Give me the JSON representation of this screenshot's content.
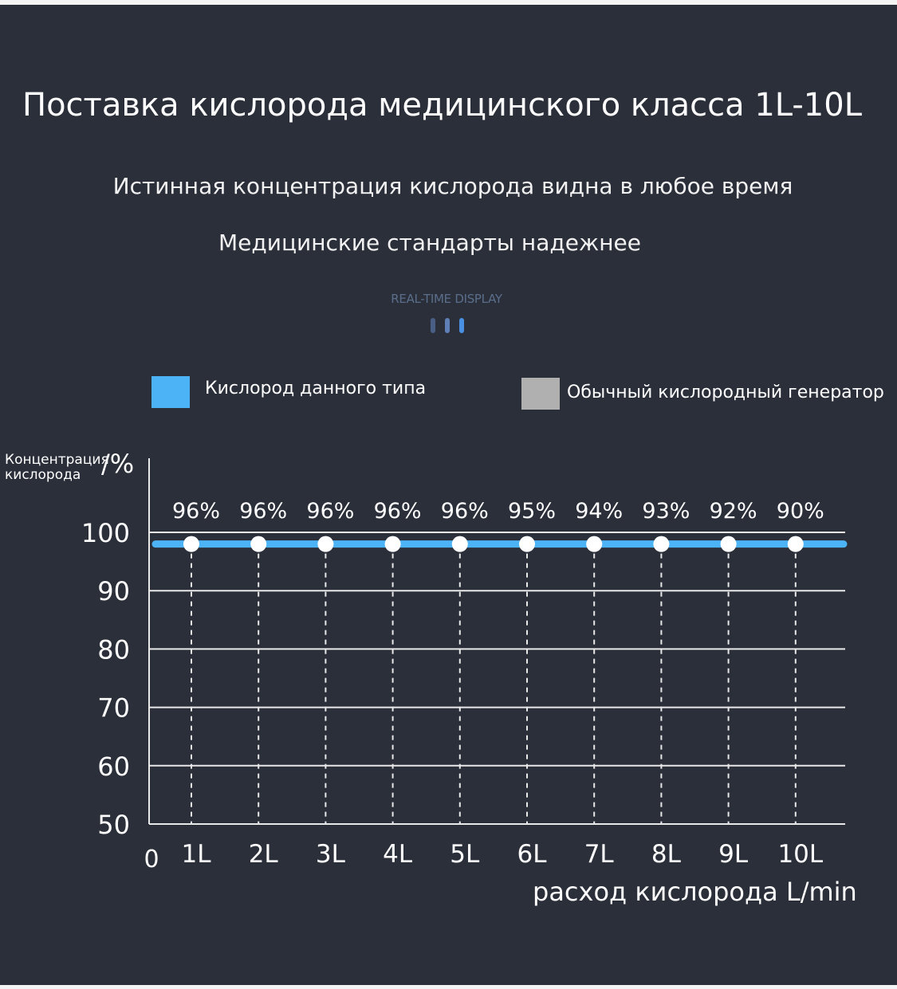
{
  "header": {
    "title": "Поставка кислорода медицинского класса 1L-10L",
    "subtitle_1": "Истинная концентрация кислорода видна в любое время",
    "subtitle_2": "Медицинские стандарты надежнее",
    "realtime_label": "REAL-TIME DISPLAY"
  },
  "legend": {
    "items": [
      {
        "label": "Кислород данного типа",
        "color": "#4db3f7"
      },
      {
        "label": "Обычный кислородный генератор",
        "color": "#b0b0b0"
      }
    ]
  },
  "colors": {
    "background": "#2b2f3a",
    "grid": "#e9e9e9",
    "line": "#4db3f7",
    "marker": "#ffffff",
    "realtime_bars": [
      "#4a5f86",
      "#5f80b6",
      "#4a90e2"
    ]
  },
  "chart_data": {
    "type": "line",
    "ylabel": "Концентрация кислорода",
    "yunit": "%",
    "xlabel": "расход кислорода",
    "xunit": "L/min",
    "ylim": [
      50,
      100
    ],
    "yticks": [
      100,
      90,
      80,
      70,
      60,
      50
    ],
    "x_origin_label": "0",
    "categories": [
      "1L",
      "2L",
      "3L",
      "4L",
      "5L",
      "6L",
      "7L",
      "8L",
      "9L",
      "10L"
    ],
    "data_labels": [
      "96%",
      "96%",
      "96%",
      "96%",
      "96%",
      "95%",
      "94%",
      "93%",
      "92%",
      "90%"
    ],
    "series": [
      {
        "name": "Кислород данного типа",
        "values": [
          98,
          98,
          98,
          98,
          98,
          98,
          98,
          98,
          98,
          98
        ]
      }
    ],
    "grid": true,
    "legend_position": "top"
  }
}
